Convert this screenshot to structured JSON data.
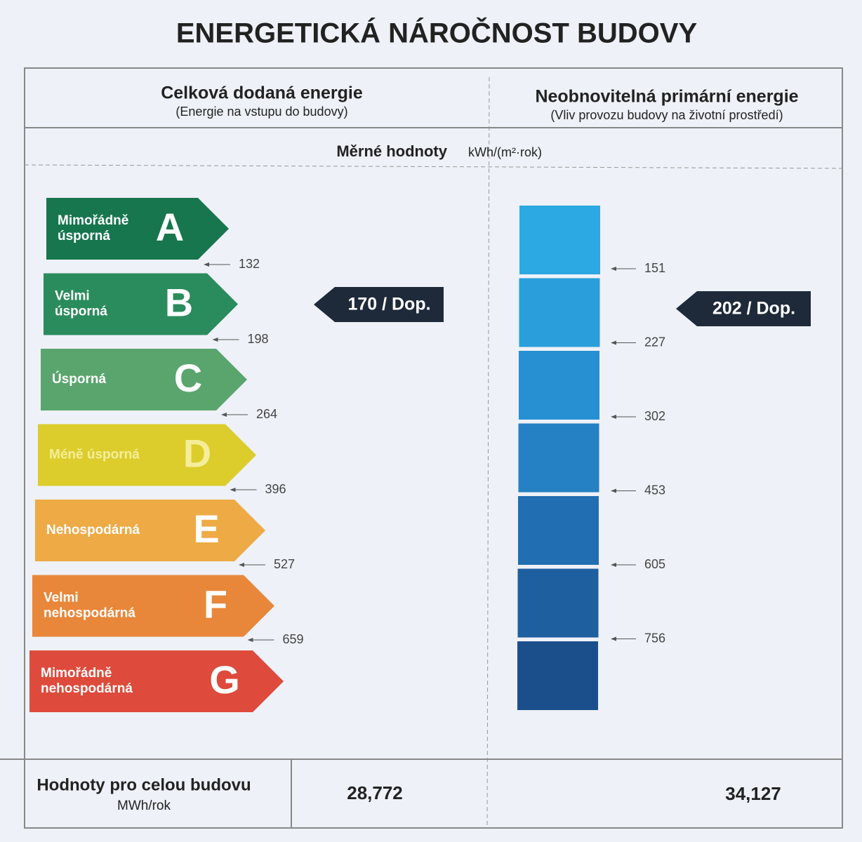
{
  "title": "ENERGETICKÁ NÁROČNOST BUDOVY",
  "columns": [
    {
      "title": "Celková dodaná energie",
      "subtitle": "(Energie na vstupu do budovy)"
    },
    {
      "title": "Neobnovitelná primární energie",
      "subtitle": "(Vliv provozu budovy na životní prostředí)"
    }
  ],
  "units": {
    "label": "Měrné hodnoty",
    "unit": "kWh/(m²·rok)"
  },
  "classes": [
    {
      "letter": "A",
      "label_lines": [
        "Mimořádně",
        "úsporná"
      ],
      "color": "#17764d"
    },
    {
      "letter": "B",
      "label_lines": [
        "Velmi",
        "úsporná"
      ],
      "color": "#2a8c5c"
    },
    {
      "letter": "C",
      "label_lines": [
        "Úsporná"
      ],
      "color": "#5aa56e"
    },
    {
      "letter": "D",
      "label_lines": [
        "Méně úsporná"
      ],
      "color": "#dccd2c"
    },
    {
      "letter": "E",
      "label_lines": [
        "Nehospodárná"
      ],
      "color": "#eeaa45"
    },
    {
      "letter": "F",
      "label_lines": [
        "Velmi",
        "nehospodárná"
      ],
      "color": "#e8873a"
    },
    {
      "letter": "G",
      "label_lines": [
        "Mimořádně",
        "nehospodárná"
      ],
      "color": "#de4a3b"
    }
  ],
  "delivered": {
    "thresholds": [
      132,
      198,
      264,
      396,
      527,
      659
    ],
    "rating": "170 / Dop."
  },
  "primary": {
    "thresholds": [
      151,
      227,
      302,
      453,
      605,
      756
    ],
    "rating": "202 / Dop.",
    "colors": [
      "#2ca8e2",
      "#2a9edb",
      "#2690d2",
      "#2580c4",
      "#216fb2",
      "#1e5fa0",
      "#1b4f8c"
    ]
  },
  "footer": {
    "label": "Hodnoty pro celou budovu",
    "unit": "MWh/rok",
    "values": [
      "28,772",
      "34,127"
    ]
  }
}
